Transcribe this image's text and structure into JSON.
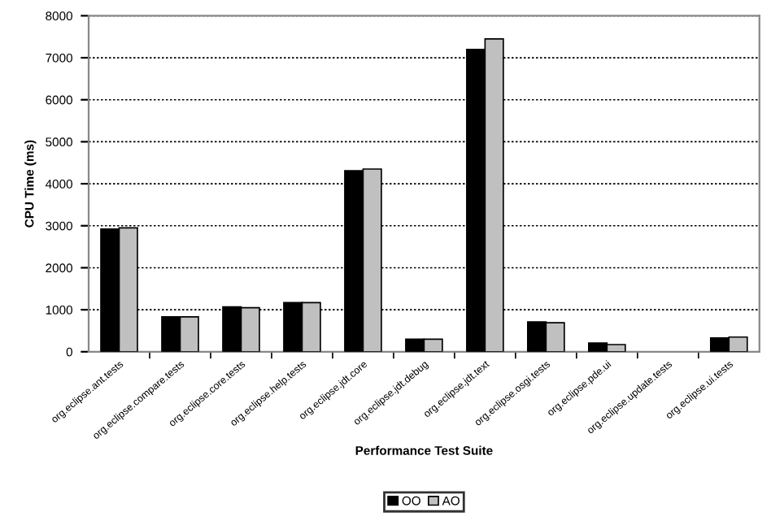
{
  "chart_data": {
    "type": "bar",
    "xlabel": "Performance Test Suite",
    "ylabel": "CPU Time (ms)",
    "categories": [
      "org.eclipse.ant.tests",
      "org.eclipse.compare.tests",
      "org.eclipse.core.tests",
      "org.eclipse.help.tests",
      "org.eclipse.jdt.core",
      "org.eclipse.jdt.debug",
      "org.eclipse.jdt.text",
      "org.eclipse.osgi.tests",
      "org.eclipse.pde.ui",
      "org.eclipse.update.tests",
      "org.eclipse.ui.tests"
    ],
    "series": [
      {
        "name": "OO",
        "color": "#000000",
        "values": [
          2920,
          830,
          1070,
          1170,
          4310,
          300,
          7200,
          710,
          210,
          null,
          330
        ]
      },
      {
        "name": "AO",
        "color": "#c0c0c0",
        "values": [
          2950,
          830,
          1050,
          1170,
          4350,
          300,
          7450,
          690,
          170,
          null,
          350
        ]
      }
    ],
    "ylim": [
      0,
      8000
    ],
    "yticks": [
      0,
      1000,
      2000,
      3000,
      4000,
      5000,
      6000,
      7000,
      8000
    ],
    "grid": "y",
    "legend": "bottom"
  }
}
